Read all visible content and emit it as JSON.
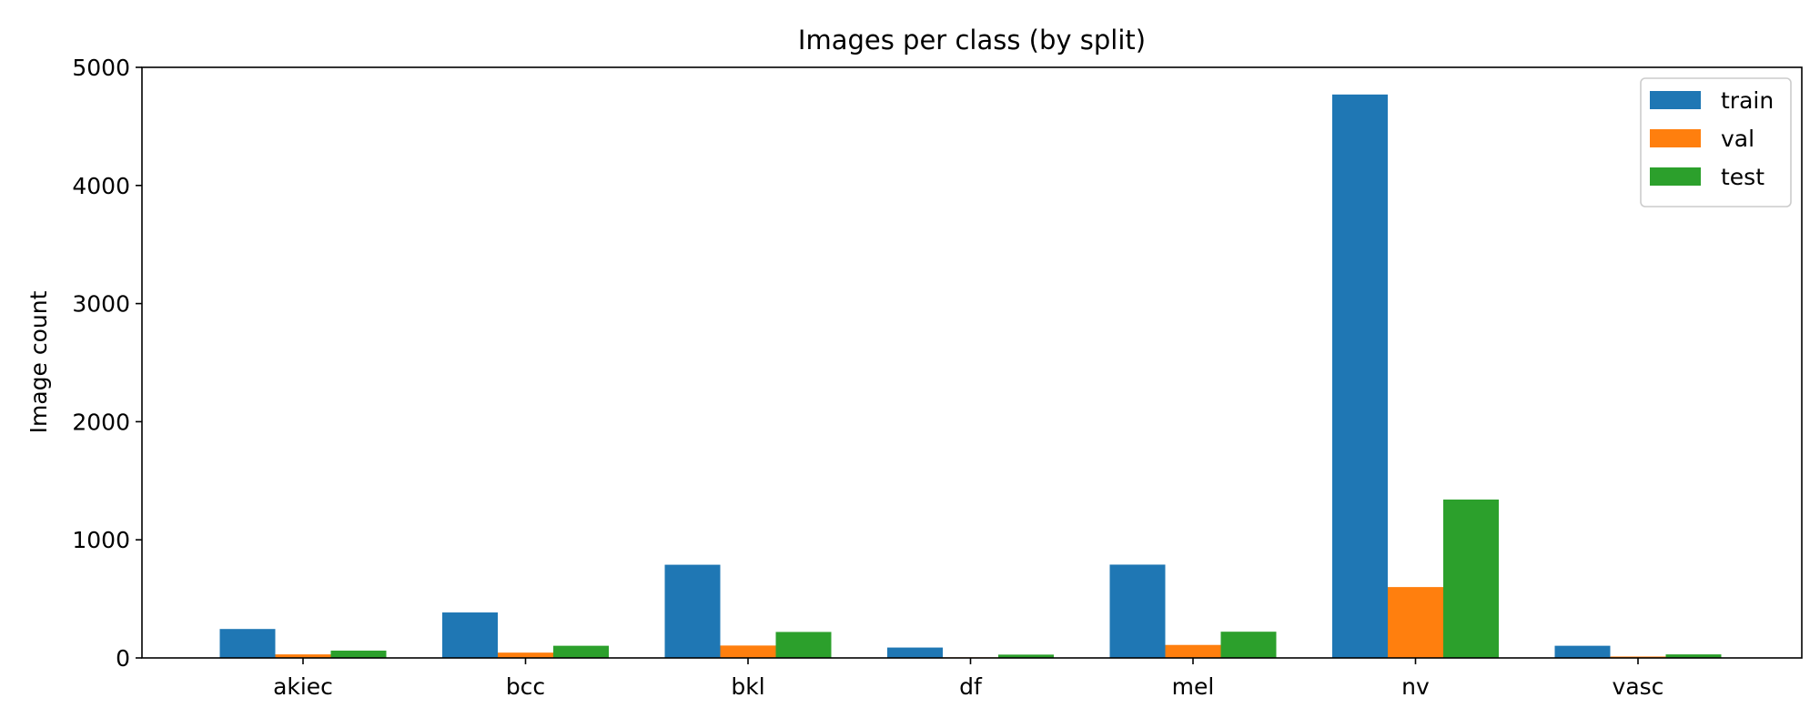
{
  "chart_data": {
    "type": "bar",
    "title": "Images per class (by split)",
    "xlabel": "",
    "ylabel": "Image count",
    "categories": [
      "akiec",
      "bcc",
      "bkl",
      "df",
      "mel",
      "nv",
      "vasc"
    ],
    "series": [
      {
        "name": "train",
        "color": "#1f77b4",
        "values": [
          245,
          385,
          789,
          88,
          790,
          4770,
          103
        ]
      },
      {
        "name": "val",
        "color": "#ff7f0e",
        "values": [
          30,
          45,
          105,
          5,
          110,
          600,
          12
        ]
      },
      {
        "name": "test",
        "color": "#2ca02c",
        "values": [
          62,
          103,
          220,
          28,
          222,
          1341,
          30
        ]
      }
    ],
    "ylim": [
      0,
      5000
    ],
    "yticks": [
      0,
      1000,
      2000,
      3000,
      4000,
      5000
    ],
    "grid": false,
    "legend_position": "top-right"
  }
}
